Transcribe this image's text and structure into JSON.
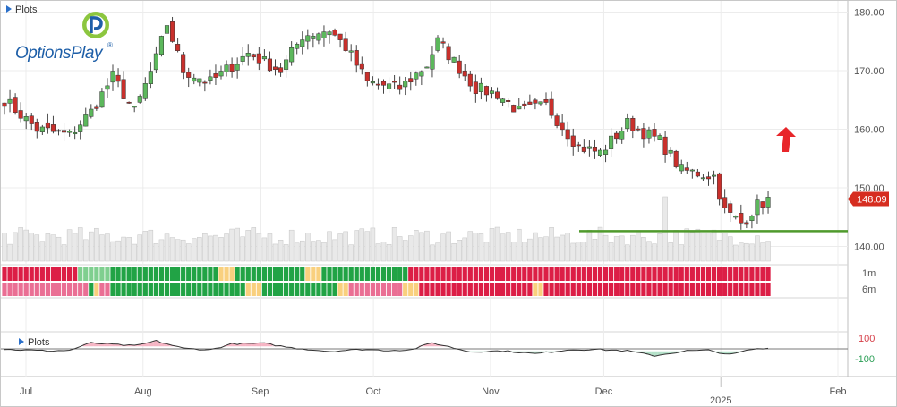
{
  "top_panel": {
    "title": "Plots"
  },
  "osc_panel": {
    "title": "Plots"
  },
  "logo": {
    "text": "OptionsPlay",
    "mark": "®"
  },
  "price": {
    "current_label": "148.09"
  },
  "signals": {
    "row1_label": "1m",
    "row2_label": "6m"
  },
  "colors": {
    "up": "#5cb85c",
    "down": "#c9302c",
    "support": "#4f9a2c",
    "arrow": "#e8262a",
    "badge": "#d62d20",
    "volume": "#e9e9e9"
  },
  "chart_data": {
    "type": "candlestick",
    "y_ticks": [
      "180.00",
      "170.00",
      "160.00",
      "150.00",
      "140.00"
    ],
    "ylim": [
      139.0,
      181.0
    ],
    "x_ticks": [
      {
        "label": "Jul",
        "date": "2024-07-01"
      },
      {
        "label": "Aug",
        "date": "2024-08-01"
      },
      {
        "label": "Sep",
        "date": "2024-09-01"
      },
      {
        "label": "Oct",
        "date": "2024-10-01"
      },
      {
        "label": "Nov",
        "date": "2024-11-01"
      },
      {
        "label": "Dec",
        "date": "2024-12-01"
      },
      {
        "label": "2025",
        "date": "2025-01-01"
      },
      {
        "label": "Feb",
        "date": "2025-02-01"
      }
    ],
    "current_price": 148.09,
    "support_level": 142.6,
    "osc_ticks": [
      "100",
      "-100"
    ],
    "osc_ylim": [
      -180,
      180
    ],
    "close_anchors": [
      [
        0,
        165
      ],
      [
        6,
        160
      ],
      [
        12,
        159
      ],
      [
        16,
        163
      ],
      [
        20,
        169
      ],
      [
        24,
        163
      ],
      [
        28,
        172
      ],
      [
        30,
        178
      ],
      [
        33,
        170
      ],
      [
        38,
        168
      ],
      [
        45,
        173
      ],
      [
        51,
        170
      ],
      [
        55,
        176
      ],
      [
        60,
        177
      ],
      [
        63,
        174
      ],
      [
        67,
        168
      ],
      [
        73,
        167
      ],
      [
        78,
        171
      ],
      [
        80,
        175
      ],
      [
        87,
        167
      ],
      [
        91,
        166
      ],
      [
        95,
        163
      ],
      [
        100,
        164
      ],
      [
        106,
        157
      ],
      [
        110,
        156
      ],
      [
        115,
        161
      ],
      [
        121,
        158
      ],
      [
        125,
        153
      ],
      [
        131,
        152
      ],
      [
        133,
        146
      ],
      [
        136,
        144
      ],
      [
        139,
        147
      ],
      [
        141,
        148
      ]
    ],
    "osc_anchors": [
      [
        0,
        -5
      ],
      [
        8,
        -20
      ],
      [
        12,
        -15
      ],
      [
        16,
        60
      ],
      [
        24,
        30
      ],
      [
        28,
        80
      ],
      [
        33,
        5
      ],
      [
        38,
        -10
      ],
      [
        42,
        50
      ],
      [
        48,
        55
      ],
      [
        53,
        10
      ],
      [
        60,
        -25
      ],
      [
        66,
        -5
      ],
      [
        70,
        -15
      ],
      [
        75,
        -10
      ],
      [
        79,
        60
      ],
      [
        86,
        -30
      ],
      [
        92,
        -20
      ],
      [
        98,
        -50
      ],
      [
        104,
        -10
      ],
      [
        109,
        -5
      ],
      [
        115,
        -20
      ],
      [
        120,
        -70
      ],
      [
        126,
        -20
      ],
      [
        130,
        -15
      ],
      [
        134,
        -60
      ],
      [
        138,
        -5
      ],
      [
        141,
        5
      ]
    ],
    "signal_1m": "RRRRRRRRRRRRRRGGGGGGGGGGGGGGGGGGGGGGGGGGYYYGGGGGGGGGGGGGYYYGGGGGGGGGGGGGGGGRRRRRRRRRRRRRRRRRRRRRRRRRRRRRRRRRRRRRRRRRRRRRRRRRRRRRRRRRRRRRRRRRRRR",
    "signal_6m": "PPPPPPPPPPPPPPPPGYPPGGGGGGGGGGGGGGGGGGGGGGGGGYYYGGGGGGGGGGGGGGYYPPPPPPPPPPYYYRRRRRRRRRRRRRRRRRRRRRYYRRRRRRRRRRRRRRRRRRRRRRRRRRRRRRRRRRRRRRRRRR"
  }
}
